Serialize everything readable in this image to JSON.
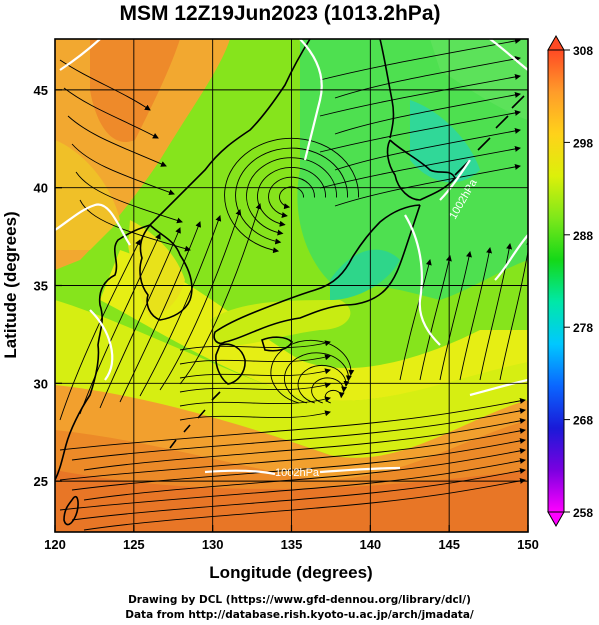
{
  "title": "MSM 12Z19Jun2023 (1013.2hPa)",
  "xlabel": "Longitude (degrees)",
  "ylabel": "Latitude  (degrees)",
  "x_ticks": [
    120,
    125,
    130,
    135,
    140,
    145,
    150
  ],
  "y_ticks": [
    25,
    30,
    35,
    40,
    45
  ],
  "x_range": [
    120,
    150
  ],
  "y_range": [
    22.4,
    47.6
  ],
  "colorbar": {
    "ticks": [
      258,
      268,
      278,
      288,
      298,
      308
    ],
    "range": [
      258,
      308
    ],
    "colors": [
      "#ff00ff",
      "#7a00e0",
      "#1a1ad8",
      "#0a66ff",
      "#00c8ff",
      "#00e8a8",
      "#14d818",
      "#7ee81a",
      "#dcf00a",
      "#ffd21a",
      "#ff9c2a",
      "#ff4a24"
    ]
  },
  "contour_label": "1002hPa",
  "credit_line1": "Drawing by DCL (https://www.gfd-dennou.org/library/dcl/)",
  "credit_line2": "Data from http://database.rish.kyoto-u.ac.jp/arch/jmadata/"
}
